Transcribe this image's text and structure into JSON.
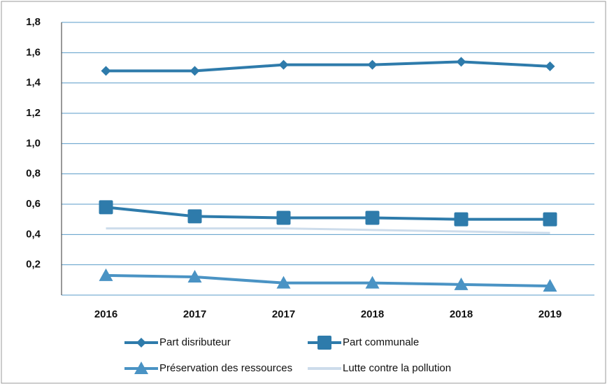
{
  "chart_data": {
    "type": "line",
    "categories": [
      "2016",
      "2017",
      "2017",
      "2018",
      "2018",
      "2019"
    ],
    "series": [
      {
        "name": "Part disributeur",
        "color": "#2e7bab",
        "marker": "diamond",
        "values": [
          1.48,
          1.48,
          1.52,
          1.52,
          1.54,
          1.51
        ]
      },
      {
        "name": "Part communale",
        "color": "#2e7bab",
        "marker": "square",
        "values": [
          0.58,
          0.52,
          0.51,
          0.51,
          0.5,
          0.5
        ]
      },
      {
        "name": "Préservation des ressources",
        "color": "#4a93c4",
        "marker": "triangle",
        "values": [
          0.13,
          0.12,
          0.08,
          0.08,
          0.07,
          0.06
        ]
      },
      {
        "name": "Lutte contre la pollution",
        "color": "#cddceb",
        "marker": "none",
        "values": [
          0.44,
          0.44,
          0.44,
          0.43,
          0.42,
          0.41
        ]
      }
    ],
    "ylim": [
      0,
      1.8
    ],
    "yticks": [
      {
        "value": 0.2,
        "label": "0,2"
      },
      {
        "value": 0.4,
        "label": "0,4"
      },
      {
        "value": 0.6,
        "label": "0,6"
      },
      {
        "value": 0.8,
        "label": "0,8"
      },
      {
        "value": 1.0,
        "label": "1,0"
      },
      {
        "value": 1.2,
        "label": "1,2"
      },
      {
        "value": 1.4,
        "label": "1,4"
      },
      {
        "value": 1.6,
        "label": "1,6"
      },
      {
        "value": 1.8,
        "label": "1,8"
      }
    ],
    "grid": true,
    "legend": "bottom"
  }
}
